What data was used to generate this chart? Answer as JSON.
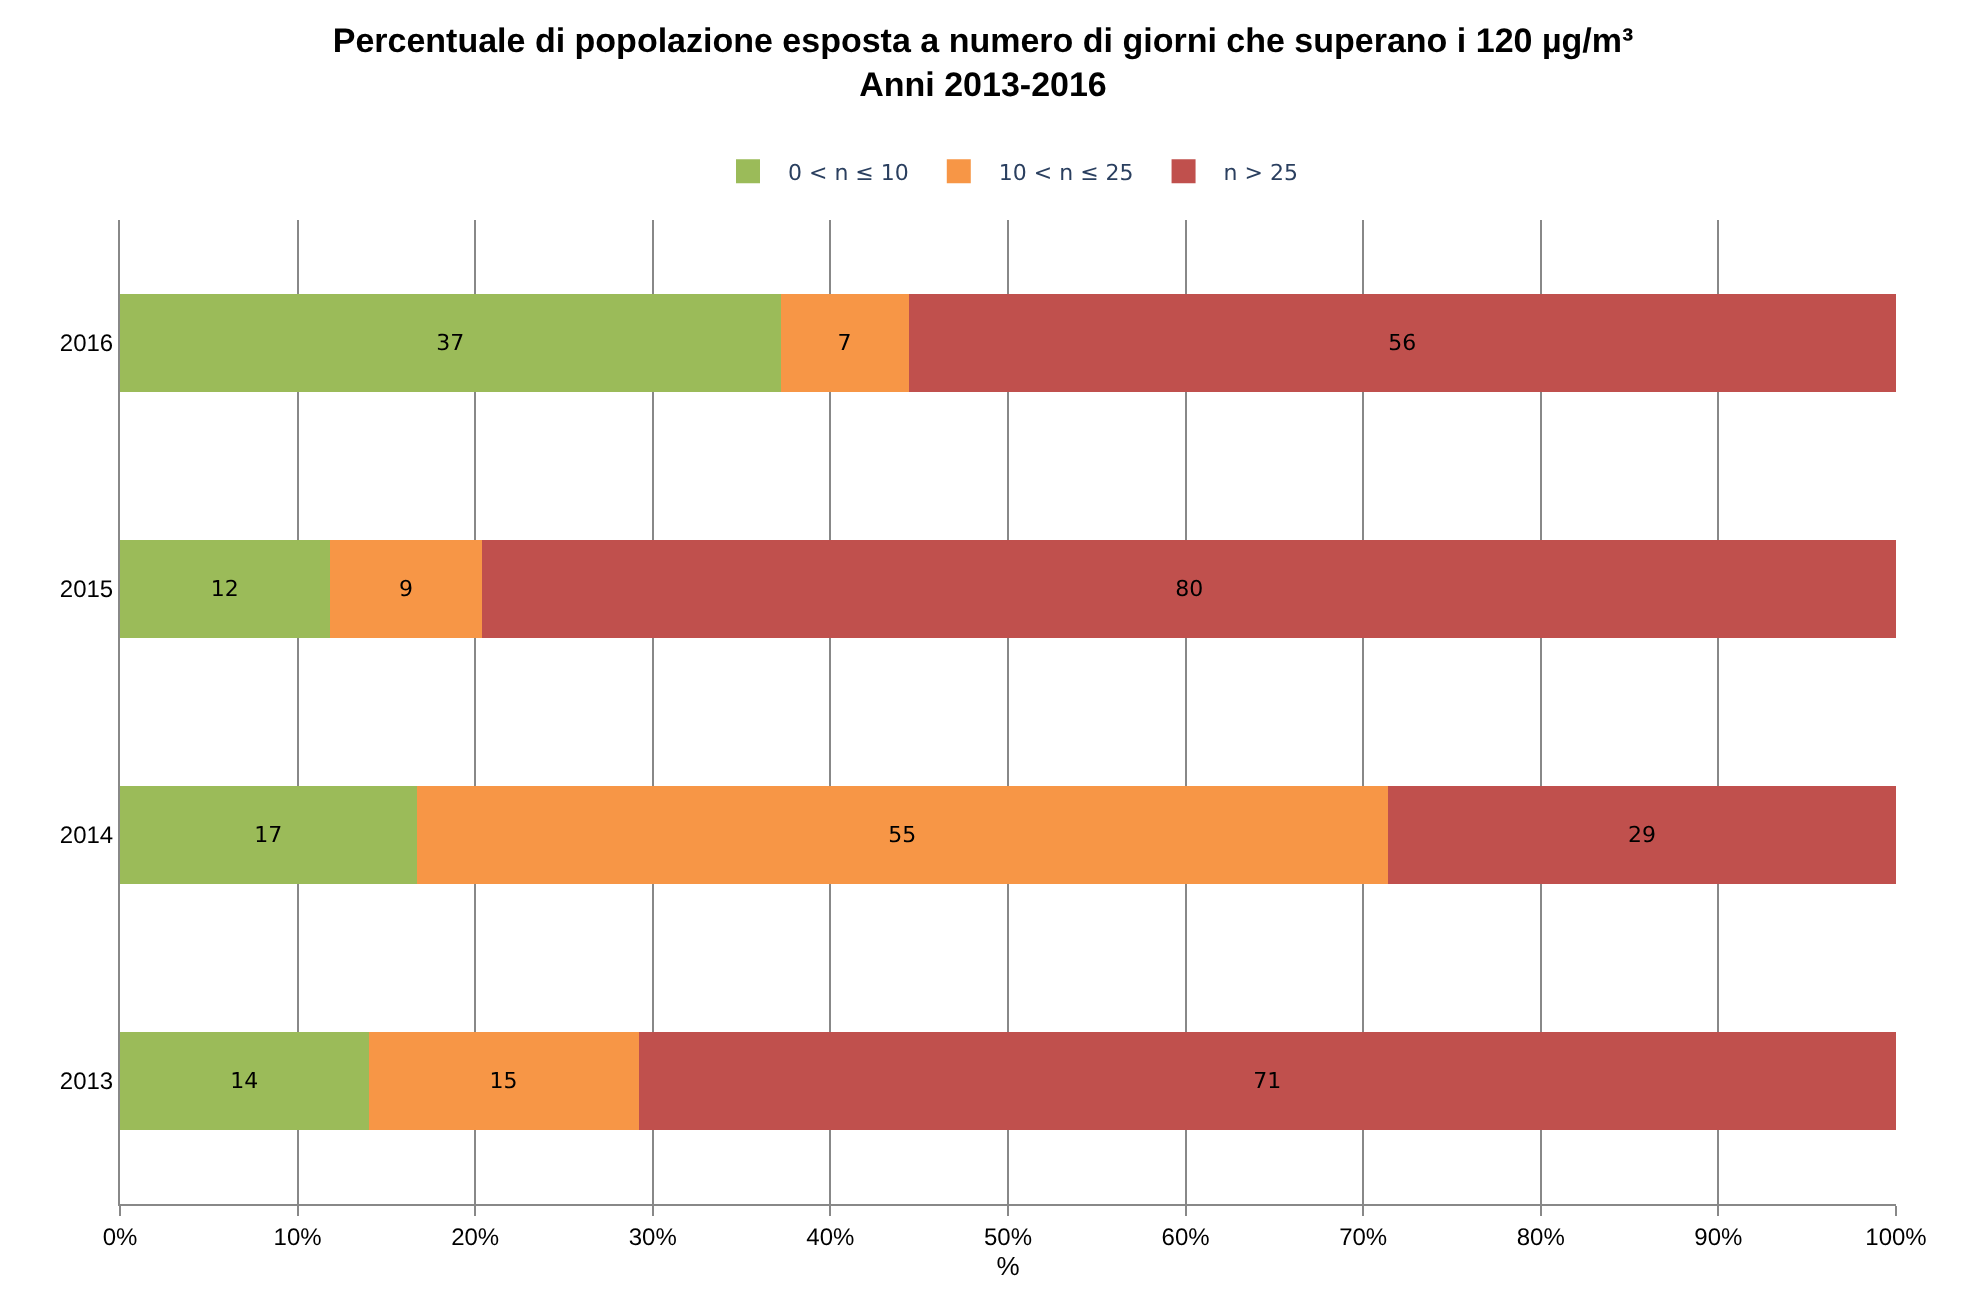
{
  "chart_data": {
    "type": "bar",
    "orientation": "horizontal",
    "stacked": true,
    "title": "Percentuale di popolazione esposta a numero di giorni che superano i 120 µg/m³",
    "subtitle": "Anni 2013-2016",
    "xlabel": "%",
    "categories": [
      "2016",
      "2015",
      "2014",
      "2013"
    ],
    "series": [
      {
        "name": "0 < n ≤ 10",
        "color": "#9bbb59",
        "values": [
          37.2,
          11.8,
          16.7,
          14.0
        ],
        "value_labels": [
          "37",
          "12",
          "17",
          "14"
        ]
      },
      {
        "name": "10 < n ≤ 25",
        "color": "#f79646",
        "values": [
          7.2,
          8.6,
          54.7,
          15.2
        ],
        "value_labels": [
          "7",
          "9",
          "55",
          "15"
        ]
      },
      {
        "name": "n > 25",
        "color": "#c0504d",
        "values": [
          55.6,
          79.6,
          28.6,
          70.8
        ],
        "value_labels": [
          "56",
          "80",
          "29",
          "71"
        ]
      }
    ],
    "xlim": [
      0,
      100
    ],
    "xticks": [
      {
        "value": 0,
        "label": "0%"
      },
      {
        "value": 10,
        "label": "10%"
      },
      {
        "value": 20,
        "label": "20%"
      },
      {
        "value": 30,
        "label": "30%"
      },
      {
        "value": 40,
        "label": "40%"
      },
      {
        "value": 50,
        "label": "50%"
      },
      {
        "value": 60,
        "label": "60%"
      },
      {
        "value": 70,
        "label": "70%"
      },
      {
        "value": 80,
        "label": "80%"
      },
      {
        "value": 90,
        "label": "90%"
      },
      {
        "value": 100,
        "label": "100%"
      }
    ],
    "grid": "x",
    "legend": "top"
  }
}
